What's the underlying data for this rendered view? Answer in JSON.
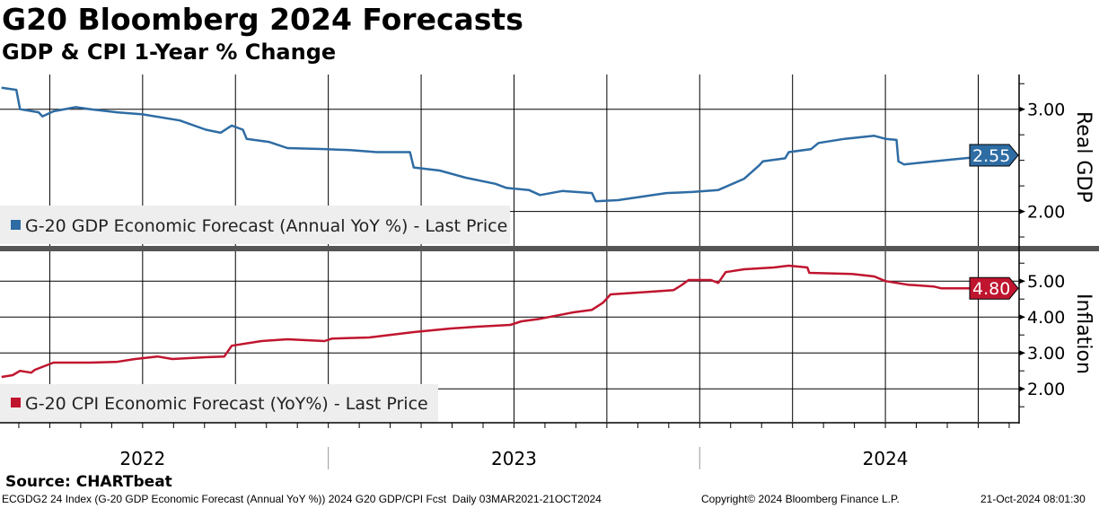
{
  "title": "G20 Bloomberg 2024 Forecasts",
  "subtitle": "GDP & CPI 1-Year % Change",
  "source": "Source: CHARTbeat",
  "footer": {
    "left": "ECGDG2 24 Index (G-20 GDP Economic Forecast (Annual YoY %)) 2024 G20 GDP/CPI Fcst  Daily 03MAR2021-21OCT2024",
    "center": "Copyright© 2024 Bloomberg Finance L.P.",
    "right": "21-Oct-2024 08:01:30"
  },
  "colors": {
    "gdp": "#2e6ca4",
    "cpi": "#c0152f"
  },
  "chart_data": [
    {
      "type": "line",
      "title": "Real GDP",
      "ylabel": "Real GDP",
      "ylim": [
        1.68,
        3.34
      ],
      "yticks": [
        {
          "v": 3,
          "label": "3.00"
        },
        {
          "v": 2,
          "label": "2.00"
        }
      ],
      "legend": "G-20 GDP Economic Forecast (Annual YoY %) - Last Price",
      "last_value": 2.55,
      "last_label": "2.55",
      "x": [
        2022.12,
        2022.16,
        2022.17,
        2022.22,
        2022.23,
        2022.26,
        2022.32,
        2022.36,
        2022.43,
        2022.5,
        2022.6,
        2022.67,
        2022.71,
        2022.74,
        2022.77,
        2022.78,
        2022.84,
        2022.89,
        2022.99,
        2023.06,
        2023.13,
        2023.22,
        2023.23,
        2023.3,
        2023.37,
        2023.45,
        2023.48,
        2023.54,
        2023.57,
        2023.63,
        2023.71,
        2023.72,
        2023.78,
        2023.91,
        2023.98,
        2024.05,
        2024.12,
        2024.16,
        2024.17,
        2024.23,
        2024.24,
        2024.3,
        2024.32,
        2024.39,
        2024.47,
        2024.5,
        2024.53,
        2024.535,
        2024.55,
        2024.63,
        2024.74,
        2024.76,
        2024.8
      ],
      "y": [
        3.21,
        3.19,
        3.0,
        2.97,
        2.93,
        2.98,
        3.02,
        3.0,
        2.97,
        2.95,
        2.89,
        2.8,
        2.77,
        2.84,
        2.8,
        2.71,
        2.68,
        2.62,
        2.61,
        2.6,
        2.58,
        2.58,
        2.43,
        2.4,
        2.33,
        2.27,
        2.23,
        2.21,
        2.16,
        2.2,
        2.18,
        2.1,
        2.11,
        2.18,
        2.19,
        2.21,
        2.32,
        2.45,
        2.49,
        2.52,
        2.58,
        2.61,
        2.67,
        2.71,
        2.74,
        2.71,
        2.7,
        2.49,
        2.46,
        2.49,
        2.53,
        2.56,
        2.55
      ]
    },
    {
      "type": "line",
      "title": "Inflation",
      "ylabel": "Inflation",
      "ylim": [
        1.08,
        5.78
      ],
      "yticks": [
        {
          "v": 5,
          "label": "5.00"
        },
        {
          "v": 4,
          "label": "4.00"
        },
        {
          "v": 3,
          "label": "3.00"
        },
        {
          "v": 2,
          "label": "2.00"
        }
      ],
      "legend": "G-20 CPI Economic Forecast (YoY%) - Last Price",
      "last_value": 4.8,
      "last_label": "4.80",
      "x": [
        2022.12,
        2022.15,
        2022.17,
        2022.2,
        2022.21,
        2022.26,
        2022.36,
        2022.43,
        2022.48,
        2022.54,
        2022.58,
        2022.67,
        2022.72,
        2022.74,
        2022.82,
        2022.89,
        2022.99,
        2023.01,
        2023.11,
        2023.23,
        2023.33,
        2023.4,
        2023.49,
        2023.52,
        2023.57,
        2023.66,
        2023.71,
        2023.74,
        2023.76,
        2023.86,
        2023.93,
        2023.95,
        2023.97,
        2024.03,
        2024.05,
        2024.07,
        2024.12,
        2024.2,
        2024.24,
        2024.29,
        2024.295,
        2024.41,
        2024.47,
        2024.5,
        2024.56,
        2024.63,
        2024.65,
        2024.8
      ],
      "y": [
        2.33,
        2.38,
        2.5,
        2.45,
        2.53,
        2.73,
        2.73,
        2.75,
        2.83,
        2.9,
        2.83,
        2.88,
        2.9,
        3.2,
        3.33,
        3.38,
        3.33,
        3.4,
        3.43,
        3.58,
        3.68,
        3.73,
        3.78,
        3.88,
        3.95,
        4.13,
        4.2,
        4.4,
        4.63,
        4.7,
        4.75,
        4.88,
        5.03,
        5.03,
        4.95,
        5.25,
        5.33,
        5.38,
        5.43,
        5.38,
        5.23,
        5.2,
        5.13,
        5.0,
        4.9,
        4.85,
        4.8,
        4.8
      ]
    }
  ],
  "x_axis": {
    "xlim": [
      2022.116,
      2024.86
    ],
    "years": [
      {
        "v": 2022.5,
        "label": "2022"
      },
      {
        "v": 2023.5,
        "label": "2023"
      },
      {
        "v": 2024.5,
        "label": "2024"
      }
    ]
  }
}
